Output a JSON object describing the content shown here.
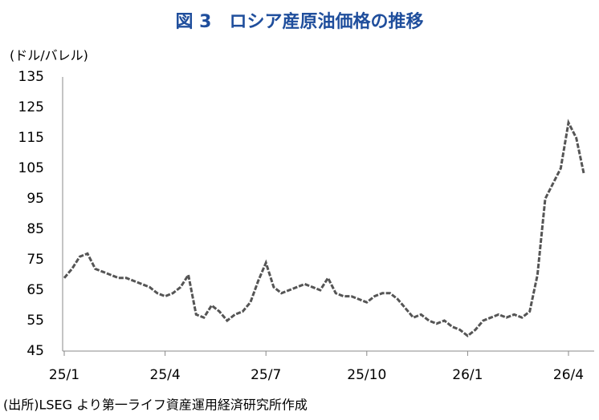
{
  "chart_data": {
    "type": "line",
    "title": "図 3　ロシア産原油価格の推移",
    "y_label": "(ドル/バレル)",
    "source": "(出所)LSEG より第一ライフ資産運用経済研究所作成",
    "categories": [
      "25/1",
      null,
      null,
      null,
      null,
      null,
      null,
      null,
      null,
      null,
      null,
      null,
      null,
      "25/4",
      null,
      null,
      null,
      null,
      null,
      null,
      null,
      null,
      null,
      null,
      null,
      null,
      "25/7",
      null,
      null,
      null,
      null,
      null,
      null,
      null,
      null,
      null,
      null,
      null,
      null,
      "25/10",
      null,
      null,
      null,
      null,
      null,
      null,
      null,
      null,
      null,
      null,
      null,
      null,
      "26/1",
      null,
      null,
      null,
      null,
      null,
      null,
      null,
      null,
      null,
      null,
      null,
      null,
      "26/4",
      null,
      null
    ],
    "series": [
      {
        "color": "#555555",
        "values": [
          69,
          72,
          76,
          77,
          72,
          71,
          70,
          69,
          69,
          68,
          67,
          66,
          64,
          63,
          64,
          66,
          70,
          57,
          56,
          60,
          58,
          55,
          57,
          58,
          61,
          68,
          74,
          66,
          64,
          65,
          66,
          67,
          66,
          65,
          69,
          64,
          63,
          63,
          62,
          61,
          63,
          64,
          64,
          62,
          59,
          56,
          57,
          55,
          54,
          55,
          53,
          52,
          50,
          52,
          55,
          56,
          57,
          56,
          57,
          56,
          58,
          70,
          95,
          100,
          105,
          120,
          115,
          103
        ]
      }
    ],
    "ylim": [
      45,
      135
    ],
    "yticks": [
      45,
      55,
      65,
      75,
      85,
      95,
      105,
      115,
      125,
      135
    ],
    "grid": false
  }
}
